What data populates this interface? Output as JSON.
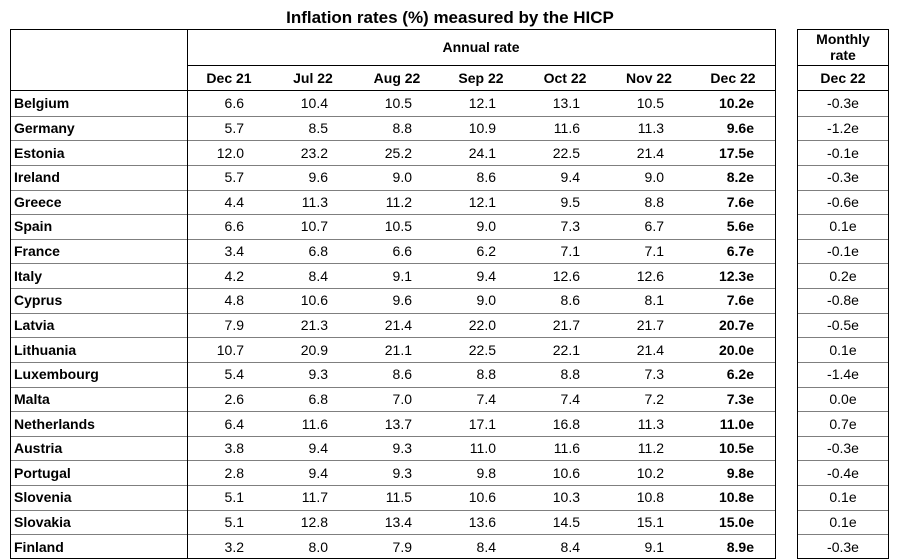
{
  "title": "Inflation rates (%) measured by the HICP",
  "header": {
    "annual_label": "Annual rate",
    "monthly_label": "Monthly rate",
    "annual_columns": [
      "Dec 21",
      "Jul 22",
      "Aug 22",
      "Sep 22",
      "Oct 22",
      "Nov 22",
      "Dec 22"
    ],
    "monthly_column": "Dec 22"
  },
  "rows": [
    {
      "country": "Belgium",
      "annual": [
        "6.6",
        "10.4",
        "10.5",
        "12.1",
        "13.1",
        "10.5",
        "10.2e"
      ],
      "monthly": "-0.3e"
    },
    {
      "country": "Germany",
      "annual": [
        "5.7",
        "8.5",
        "8.8",
        "10.9",
        "11.6",
        "11.3",
        "9.6e"
      ],
      "monthly": "-1.2e"
    },
    {
      "country": "Estonia",
      "annual": [
        "12.0",
        "23.2",
        "25.2",
        "24.1",
        "22.5",
        "21.4",
        "17.5e"
      ],
      "monthly": "-0.1e"
    },
    {
      "country": "Ireland",
      "annual": [
        "5.7",
        "9.6",
        "9.0",
        "8.6",
        "9.4",
        "9.0",
        "8.2e"
      ],
      "monthly": "-0.3e"
    },
    {
      "country": "Greece",
      "annual": [
        "4.4",
        "11.3",
        "11.2",
        "12.1",
        "9.5",
        "8.8",
        "7.6e"
      ],
      "monthly": "-0.6e"
    },
    {
      "country": "Spain",
      "annual": [
        "6.6",
        "10.7",
        "10.5",
        "9.0",
        "7.3",
        "6.7",
        "5.6e"
      ],
      "monthly": "0.1e"
    },
    {
      "country": "France",
      "annual": [
        "3.4",
        "6.8",
        "6.6",
        "6.2",
        "7.1",
        "7.1",
        "6.7e"
      ],
      "monthly": "-0.1e"
    },
    {
      "country": "Italy",
      "annual": [
        "4.2",
        "8.4",
        "9.1",
        "9.4",
        "12.6",
        "12.6",
        "12.3e"
      ],
      "monthly": "0.2e"
    },
    {
      "country": "Cyprus",
      "annual": [
        "4.8",
        "10.6",
        "9.6",
        "9.0",
        "8.6",
        "8.1",
        "7.6e"
      ],
      "monthly": "-0.8e"
    },
    {
      "country": "Latvia",
      "annual": [
        "7.9",
        "21.3",
        "21.4",
        "22.0",
        "21.7",
        "21.7",
        "20.7e"
      ],
      "monthly": "-0.5e"
    },
    {
      "country": "Lithuania",
      "annual": [
        "10.7",
        "20.9",
        "21.1",
        "22.5",
        "22.1",
        "21.4",
        "20.0e"
      ],
      "monthly": "0.1e"
    },
    {
      "country": "Luxembourg",
      "annual": [
        "5.4",
        "9.3",
        "8.6",
        "8.8",
        "8.8",
        "7.3",
        "6.2e"
      ],
      "monthly": "-1.4e"
    },
    {
      "country": "Malta",
      "annual": [
        "2.6",
        "6.8",
        "7.0",
        "7.4",
        "7.4",
        "7.2",
        "7.3e"
      ],
      "monthly": "0.0e"
    },
    {
      "country": "Netherlands",
      "annual": [
        "6.4",
        "11.6",
        "13.7",
        "17.1",
        "16.8",
        "11.3",
        "11.0e"
      ],
      "monthly": "0.7e"
    },
    {
      "country": "Austria",
      "annual": [
        "3.8",
        "9.4",
        "9.3",
        "11.0",
        "11.6",
        "11.2",
        "10.5e"
      ],
      "monthly": "-0.3e"
    },
    {
      "country": "Portugal",
      "annual": [
        "2.8",
        "9.4",
        "9.3",
        "9.8",
        "10.6",
        "10.2",
        "9.8e"
      ],
      "monthly": "-0.4e"
    },
    {
      "country": "Slovenia",
      "annual": [
        "5.1",
        "11.7",
        "11.5",
        "10.6",
        "10.3",
        "10.8",
        "10.8e"
      ],
      "monthly": "0.1e"
    },
    {
      "country": "Slovakia",
      "annual": [
        "5.1",
        "12.8",
        "13.4",
        "13.6",
        "14.5",
        "15.1",
        "15.0e"
      ],
      "monthly": "0.1e"
    },
    {
      "country": "Finland",
      "annual": [
        "3.2",
        "8.0",
        "7.9",
        "8.4",
        "8.4",
        "9.1",
        "8.9e"
      ],
      "monthly": "-0.3e"
    }
  ]
}
